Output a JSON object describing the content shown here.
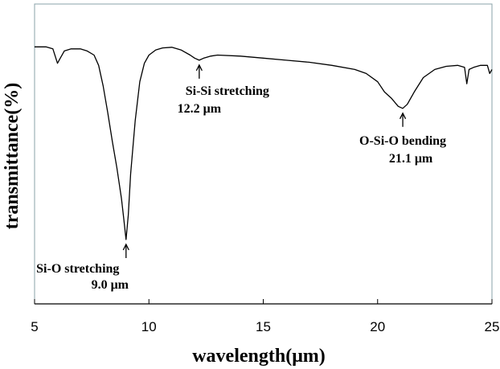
{
  "chart_data": {
    "type": "line",
    "title": "",
    "xlabel": "wavelength(μm)",
    "ylabel": "transmittance(%)",
    "xlim": [
      5,
      25
    ],
    "xticks": [
      "5",
      "10",
      "15",
      "20",
      "25"
    ],
    "grid": false,
    "series": [
      {
        "x": [
          5.0,
          5.5,
          5.8,
          6.0,
          6.1,
          6.3,
          6.6,
          7.0,
          7.3,
          7.6,
          7.8,
          8.0,
          8.2,
          8.4,
          8.6,
          8.8,
          8.9,
          9.0,
          9.1,
          9.2,
          9.4,
          9.6,
          9.8,
          10.0,
          10.3,
          10.6,
          11.0,
          11.4,
          11.8,
          12.0,
          12.2,
          12.4,
          12.7,
          13.0,
          14.0,
          15.0,
          16.0,
          17.0,
          18.0,
          19.0,
          19.5,
          20.0,
          20.3,
          20.6,
          20.9,
          21.1,
          21.3,
          21.6,
          22.0,
          22.5,
          23.0,
          23.5,
          23.8,
          23.9,
          24.0,
          24.2,
          24.5,
          24.8,
          24.9,
          25.0
        ],
        "y": [
          94,
          94,
          93,
          86,
          88,
          92,
          93,
          93,
          92,
          90,
          85,
          75,
          62,
          48,
          35,
          20,
          10,
          0,
          12,
          32,
          58,
          77,
          86,
          90,
          92.5,
          93.5,
          93.8,
          92.5,
          90,
          88.5,
          87.5,
          88.5,
          89.5,
          90,
          89.5,
          88.5,
          87.5,
          86.5,
          85,
          83,
          81,
          77,
          72,
          69,
          65,
          64,
          66,
          72,
          79,
          83,
          84.5,
          85,
          84,
          76,
          83,
          84,
          85,
          85,
          81,
          83
        ],
        "ylim": [
          -10,
          100
        ]
      }
    ],
    "annotations": [
      {
        "label": "Si-O stretching",
        "value": "9.0 μm",
        "x": 9.0
      },
      {
        "label": "Si-Si stretching",
        "value": "12.2 μm",
        "x": 12.2
      },
      {
        "label": "O-Si-O bending",
        "value": "21.1 μm",
        "x": 21.1
      }
    ]
  }
}
